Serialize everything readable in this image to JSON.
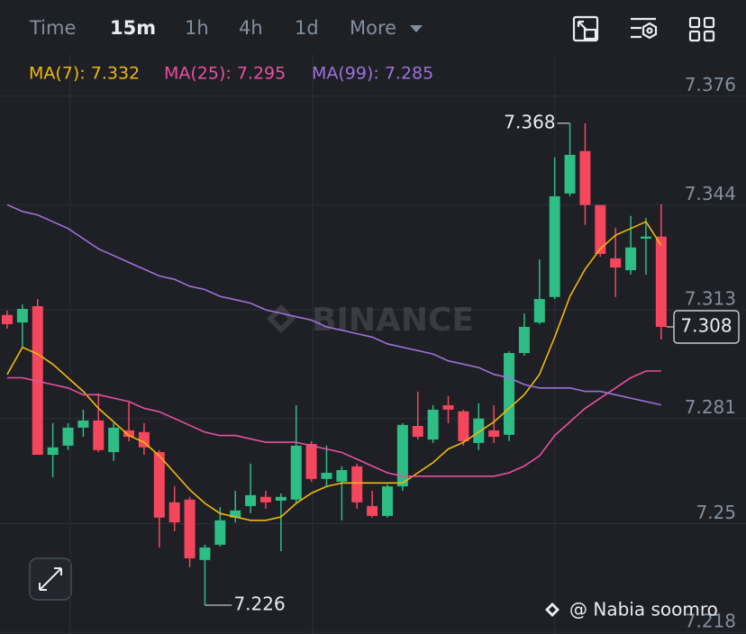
{
  "toolbar": {
    "tabs": [
      "Time",
      "15m",
      "1h",
      "4h",
      "1d",
      "More"
    ],
    "active": 1
  },
  "chart_data": {
    "type": "candlestick",
    "open": [
      7.3115,
      7.3093,
      7.3141,
      7.2703,
      7.273,
      7.2783,
      7.2804,
      7.2711,
      7.2775,
      7.277,
      7.2711,
      7.2563,
      7.2571,
      7.2393,
      7.2438,
      7.2518,
      7.2552,
      7.2579,
      7.2568,
      7.2571,
      7.2735,
      7.2632,
      7.2624,
      7.2669,
      7.2552,
      7.2523,
      7.261,
      7.2788,
      7.2748,
      7.2849,
      7.2831,
      7.2738,
      7.2775,
      7.2762,
      7.3003,
      7.3093,
      7.3168,
      7.3473,
      7.3598,
      7.3439,
      7.3282,
      7.3247,
      7.334,
      7.3346
    ],
    "high": [
      7.3128,
      7.3146,
      7.3162,
      7.2796,
      7.2796,
      7.2836,
      7.2884,
      7.2796,
      7.2857,
      7.2796,
      7.2717,
      7.261,
      7.2579,
      7.2438,
      7.2549,
      7.2597,
      7.2677,
      7.2597,
      7.2589,
      7.2849,
      7.2743,
      7.273,
      7.2669,
      7.2677,
      7.2597,
      7.2616,
      7.2796,
      7.2889,
      7.2849,
      7.2876,
      7.2836,
      7.2855,
      7.2849,
      7.3008,
      7.312,
      7.3279,
      7.3579,
      7.368,
      7.368,
      7.3439,
      7.3372,
      7.3407,
      7.3401,
      7.3441
    ],
    "low": [
      7.3075,
      7.3022,
      7.2703,
      7.2637,
      7.2717,
      7.2756,
      7.2711,
      7.2685,
      7.2743,
      7.2703,
      7.243,
      7.2478,
      7.2372,
      7.226,
      7.2433,
      7.2504,
      7.2531,
      7.2544,
      7.2419,
      7.2563,
      7.2624,
      7.261,
      7.251,
      7.2544,
      7.2518,
      7.2518,
      7.2597,
      7.2748,
      7.2738,
      7.2796,
      7.273,
      7.2717,
      7.2738,
      7.2743,
      7.2995,
      7.3088,
      7.3162,
      7.3465,
      7.338,
      7.3287,
      7.3168,
      7.3234,
      7.3234,
      7.3043
    ],
    "close": [
      7.3088,
      7.3133,
      7.2703,
      7.2725,
      7.2783,
      7.2804,
      7.2717,
      7.2783,
      7.2756,
      7.2725,
      7.2518,
      7.2504,
      7.2398,
      7.243,
      7.251,
      7.2539,
      7.2584,
      7.2563,
      7.2579,
      7.273,
      7.2632,
      7.265,
      7.2658,
      7.2563,
      7.2523,
      7.261,
      7.2791,
      7.2756,
      7.2836,
      7.2836,
      7.2743,
      7.281,
      7.2756,
      7.3003,
      7.308,
      7.3162,
      7.3465,
      7.3587,
      7.3439,
      7.3295,
      7.3255,
      7.3314,
      7.3346,
      7.308
    ],
    "up_color": "#2ebd85",
    "down_color": "#f6465d",
    "series": [
      {
        "name": "MA(7): 7.332",
        "color": "#f0b90b",
        "values": [
          7.294,
          7.302,
          7.3,
          7.297,
          7.293,
          7.289,
          7.284,
          7.28,
          7.276,
          7.274,
          7.27,
          7.265,
          7.26,
          7.256,
          7.253,
          7.252,
          7.251,
          7.251,
          7.252,
          7.256,
          7.259,
          7.261,
          7.262,
          7.262,
          7.262,
          7.262,
          7.262,
          7.265,
          7.268,
          7.272,
          7.274,
          7.277,
          7.28,
          7.284,
          7.288,
          7.294,
          7.305,
          7.317,
          7.325,
          7.331,
          7.335,
          7.337,
          7.339,
          7.332
        ]
      },
      {
        "name": "MA(25): 7.295",
        "color": "#e8509f",
        "values": [
          7.293,
          7.293,
          7.292,
          7.291,
          7.29,
          7.288,
          7.288,
          7.287,
          7.286,
          7.284,
          7.283,
          7.281,
          7.279,
          7.277,
          7.276,
          7.276,
          7.275,
          7.274,
          7.274,
          7.274,
          7.273,
          7.272,
          7.271,
          7.269,
          7.267,
          7.265,
          7.264,
          7.264,
          7.264,
          7.264,
          7.264,
          7.264,
          7.264,
          7.265,
          7.267,
          7.27,
          7.276,
          7.28,
          7.284,
          7.287,
          7.29,
          7.293,
          7.295,
          7.295
        ]
      },
      {
        "name": "MA(99): 7.285",
        "color": "#9d72d9",
        "values": [
          7.344,
          7.342,
          7.341,
          7.339,
          7.337,
          7.334,
          7.331,
          7.329,
          7.327,
          7.325,
          7.323,
          7.322,
          7.32,
          7.319,
          7.317,
          7.316,
          7.315,
          7.313,
          7.312,
          7.311,
          7.31,
          7.308,
          7.307,
          7.306,
          7.305,
          7.303,
          7.302,
          7.301,
          7.3,
          7.298,
          7.297,
          7.296,
          7.294,
          7.293,
          7.291,
          7.29,
          7.29,
          7.29,
          7.289,
          7.289,
          7.288,
          7.287,
          7.286,
          7.285
        ]
      }
    ],
    "ylim": [
      7.2175,
      7.3884
    ],
    "yticks": [
      7.376,
      7.344,
      7.313,
      7.281,
      7.25,
      7.218
    ],
    "grid": true,
    "max_label": 7.368,
    "min_label": 7.226,
    "last_price": 7.308,
    "watermark": "BINANCE",
    "credit": "@ Nabia soomro"
  }
}
